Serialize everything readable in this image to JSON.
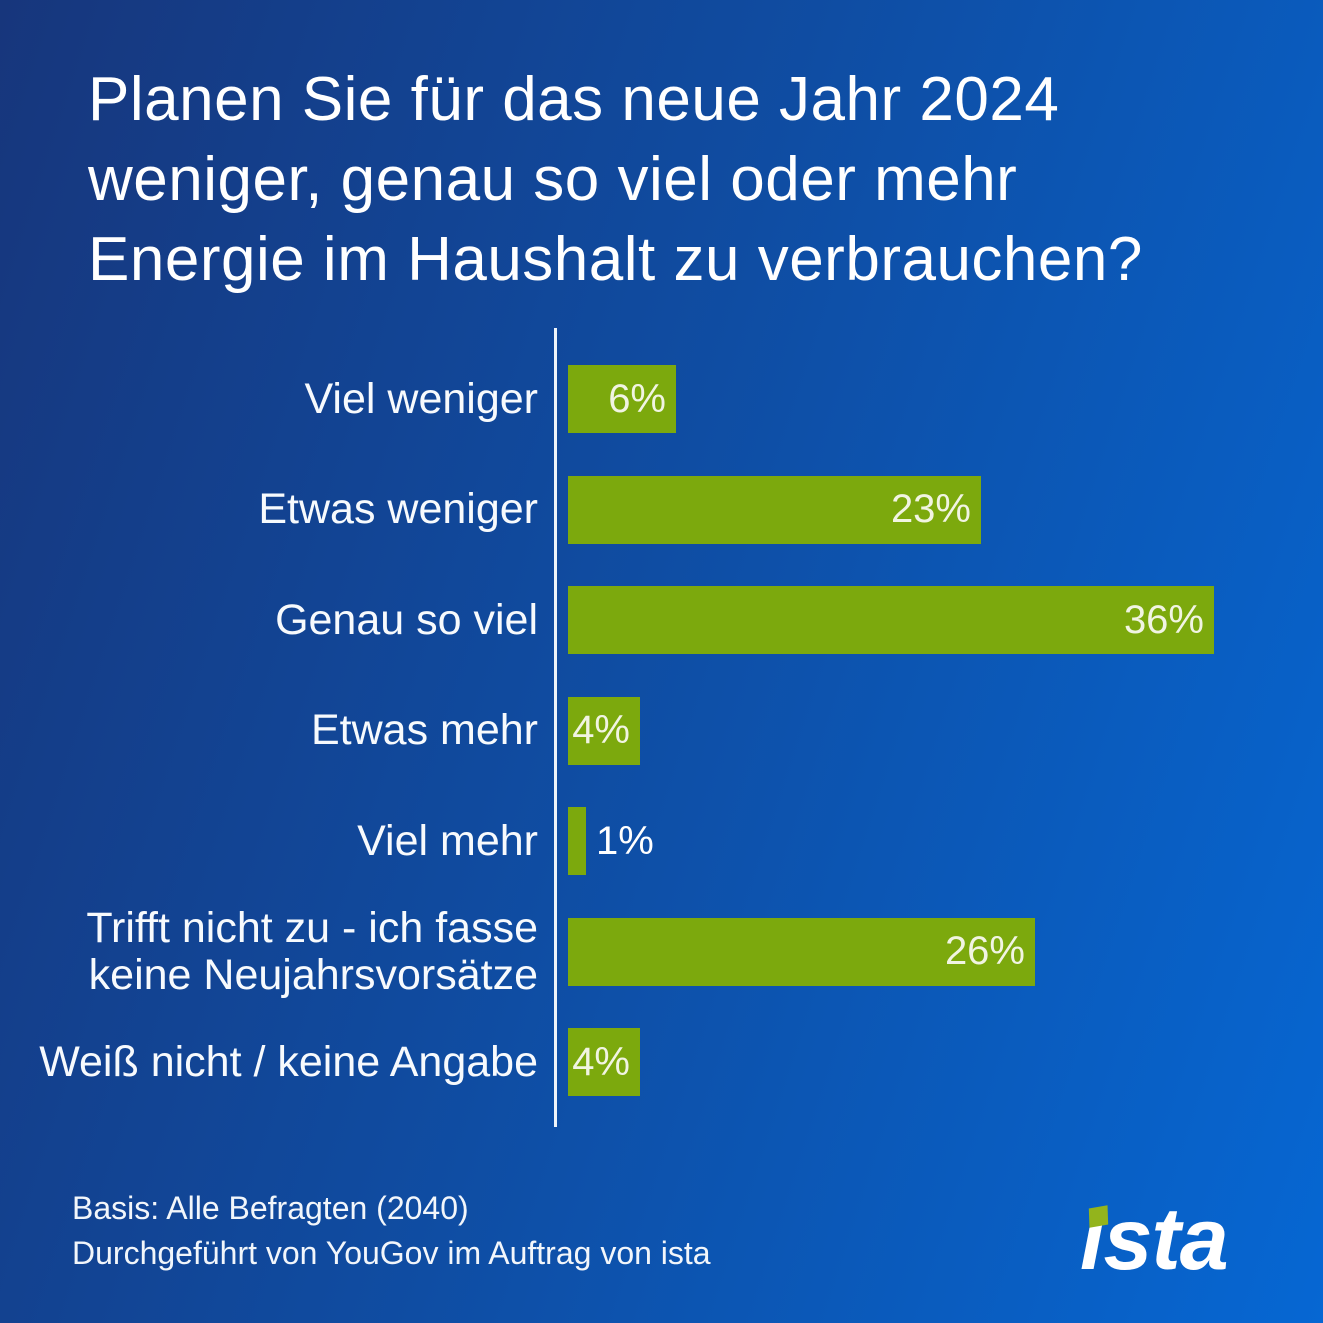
{
  "chart_data": {
    "type": "bar",
    "orientation": "horizontal",
    "title": "Planen Sie für das neue Jahr 2024\nweniger, genau so viel oder mehr\nEnergie im Haushalt zu verbrauchen?",
    "categories": [
      "Viel weniger",
      "Etwas weniger",
      "Genau so viel",
      "Etwas mehr",
      "Viel mehr",
      "Trifft nicht zu - ich fasse\nkeine Neujahrsvorsätze",
      "Weiß nicht / keine Angabe"
    ],
    "values": [
      6,
      23,
      36,
      4,
      1,
      26,
      4
    ],
    "value_suffix": "%",
    "xlabel": "",
    "ylabel": "",
    "xlim": [
      0,
      36
    ],
    "grid": false,
    "legend": false,
    "bar_color": "#7ca90d",
    "value_label_inside_color": "#f1f4e2",
    "value_label_outside_color": "#ffffff"
  },
  "footer": {
    "note": "Basis: Alle Befragten (2040)\nDurchgeführt von YouGov im Auftrag von ista"
  },
  "brand": {
    "logo_text": "ista",
    "logo_text_color": "#ffffff",
    "logo_accent_color": "#93b41c"
  }
}
